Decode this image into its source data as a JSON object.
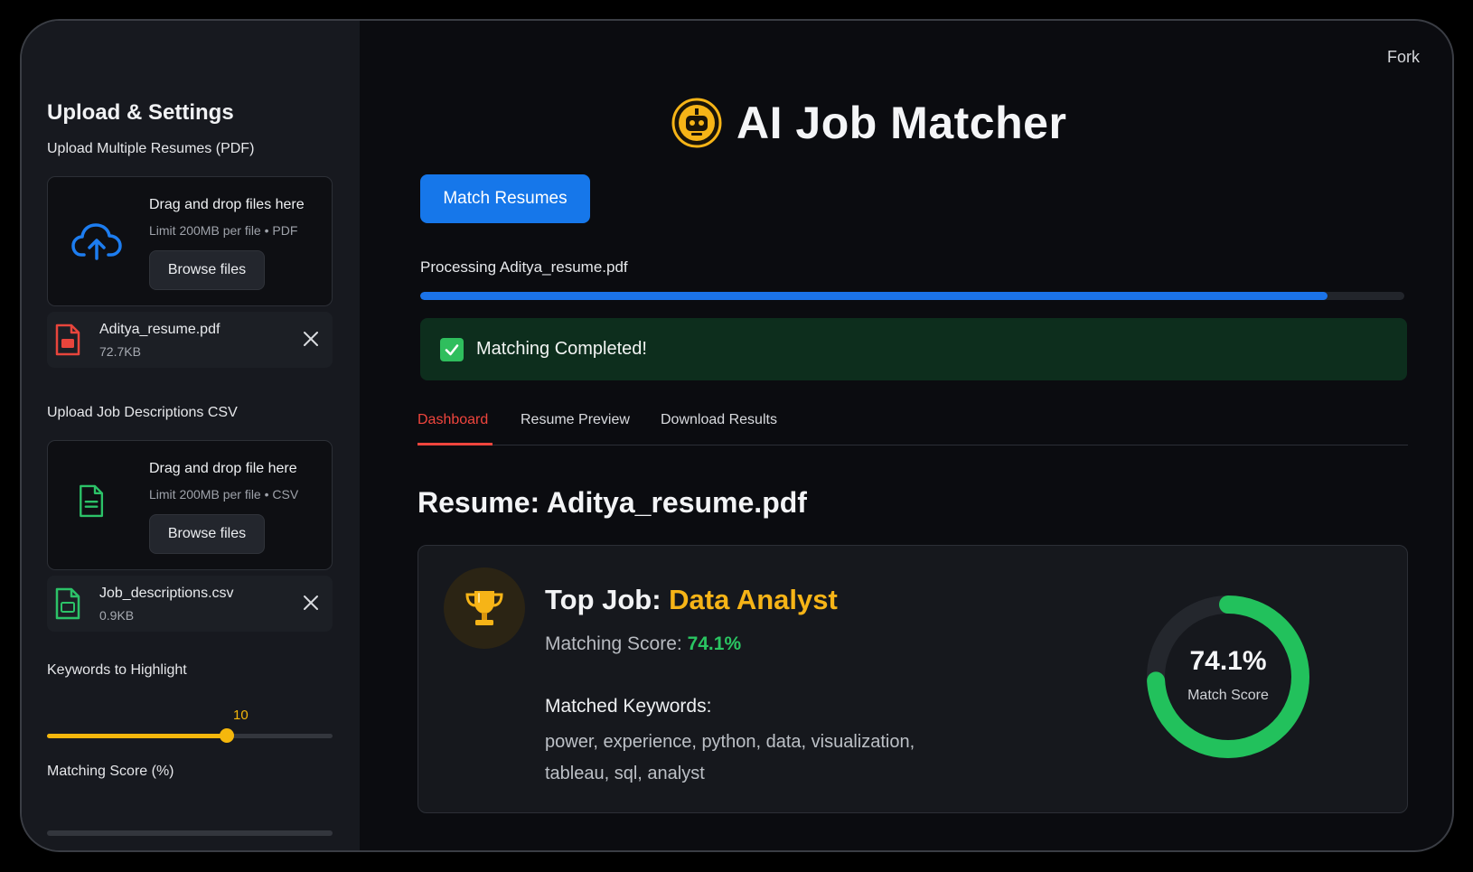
{
  "sidebar": {
    "title": "Upload & Settings",
    "resumes_label": "Upload Multiple Resumes (PDF)",
    "resume_dropzone": {
      "title": "Drag and drop files here",
      "limit": "Limit 200MB per file • PDF",
      "browse": "Browse files"
    },
    "resume_file": {
      "name": "Aditya_resume.pdf",
      "size": "72.7KB"
    },
    "jobs_label": "Upload Job Descriptions CSV",
    "job_dropzone": {
      "title": "Drag and drop file here",
      "limit": "Limit 200MB per file • CSV",
      "browse": "Browse files"
    },
    "job_file": {
      "name": "Job_descriptions.csv",
      "size": "0.9KB"
    },
    "keywords_label": "Keywords to Highlight",
    "keywords_value": "10",
    "keywords_fraction": 0.63,
    "matching_score_label": "Matching Score (%)"
  },
  "header": {
    "fork": "Fork",
    "app_title": "AI Job Matcher",
    "match_button": "Match Resumes"
  },
  "progress": {
    "text": "Processing Aditya_resume.pdf",
    "fraction": 0.922
  },
  "success": {
    "text": "Matching Completed!"
  },
  "tabs": [
    {
      "label": "Dashboard",
      "active": true
    },
    {
      "label": "Resume Preview",
      "active": false
    },
    {
      "label": "Download Results",
      "active": false
    }
  ],
  "result": {
    "resume_title": "Resume: Aditya_resume.pdf",
    "top_job_prefix": "Top Job: ",
    "top_job": "Data Analyst",
    "score_prefix": "Matching Score: ",
    "score": "74.1%",
    "score_value": 74.1,
    "keywords_heading": "Matched Keywords:",
    "keywords": "power, experience, python, data, visualization, tableau, sql, analyst",
    "donut_value": "74.1%",
    "donut_label": "Match Score"
  },
  "colors": {
    "accent_blue": "#1677ea",
    "accent_yellow": "#f6b417",
    "accent_green": "#2ac562",
    "tab_active": "#f0453d"
  },
  "icons": {
    "upload": "cloud-upload-icon",
    "pdf": "pdf-file-icon",
    "csv": "csv-file-icon",
    "document": "document-icon",
    "close": "close-icon",
    "robot": "robot-icon",
    "trophy": "trophy-icon",
    "check": "check-icon"
  }
}
